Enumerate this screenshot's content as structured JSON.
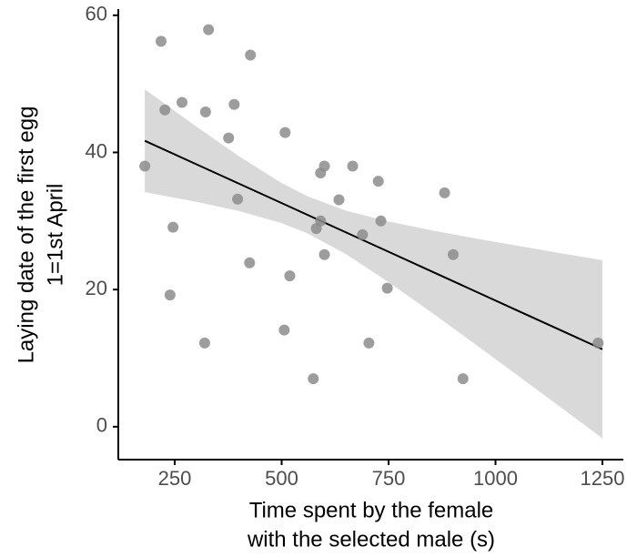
{
  "chart_data": {
    "type": "scatter",
    "x_label": [
      "Time spent by the female",
      "with the selected male (s)"
    ],
    "y_label": [
      "Laying date of the first egg",
      "1=1st April"
    ],
    "xlim": [
      118,
      1299
    ],
    "ylim": [
      -4.8,
      60.9
    ],
    "xticks": [
      250,
      500,
      750,
      1000,
      1250
    ],
    "yticks": [
      0,
      20,
      40,
      60
    ],
    "series": [
      {
        "color": "#8c8c8c",
        "x": [
          180,
          218,
          227,
          246,
          239,
          267,
          322,
          320,
          329,
          376,
          389,
          397,
          427,
          425,
          508,
          506,
          519,
          574,
          581,
          591,
          591,
          600,
          600,
          634,
          666,
          689,
          704,
          726,
          732,
          747,
          881,
          901,
          924,
          1240
        ],
        "values": [
          38,
          56.2,
          46.2,
          29.1,
          19.2,
          47.3,
          45.9,
          12.2,
          57.9,
          42.1,
          47,
          33.2,
          54.2,
          23.9,
          42.9,
          14.1,
          22,
          7,
          28.9,
          30,
          37,
          38,
          25.1,
          33.1,
          38,
          28,
          12.2,
          35.8,
          30,
          20.2,
          34.1,
          25.1,
          7,
          12.2
        ]
      }
    ],
    "fit": {
      "color": "#000000",
      "band_color": "#d9d9d9",
      "x": [
        180,
        300,
        400,
        500,
        560,
        650,
        750,
        850,
        950,
        1050,
        1150,
        1250
      ],
      "values": [
        41.7,
        38.29,
        35.45,
        32.61,
        30.9,
        28.35,
        25.51,
        22.67,
        19.82,
        16.98,
        14.14,
        11.3
      ],
      "lower": [
        34.2,
        32.79,
        31.45,
        29.69,
        28.2,
        25.18,
        21.09,
        16.69,
        12.15,
        7.56,
        2.95,
        -1.69
      ],
      "upper": [
        49.2,
        43.79,
        39.45,
        35.53,
        33.6,
        31.52,
        29.93,
        28.65,
        27.49,
        26.4,
        25.33,
        24.29
      ]
    }
  }
}
